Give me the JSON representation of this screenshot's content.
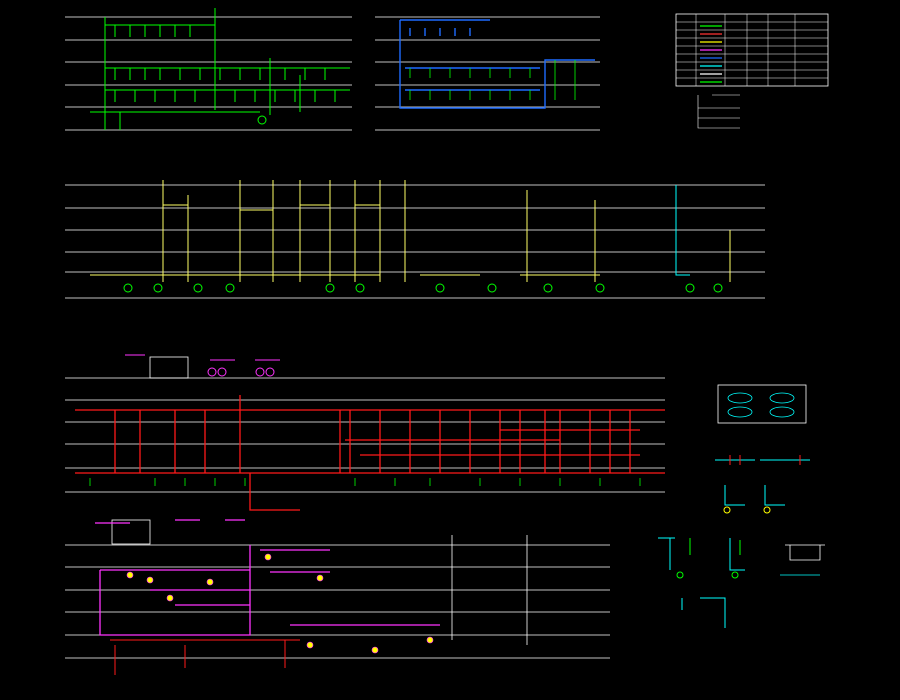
{
  "colors": {
    "background": "#000000",
    "floor_line": "#ffffff",
    "water_supply": "#00ff00",
    "drainage": "#ffff66",
    "blue_system": "#1e6bff",
    "fire_hydrant": "#ff1a1a",
    "sprinkler": "#ff33ff",
    "detail": "#00ffff",
    "text": "#00ff00",
    "accent_text": "#ffff00",
    "legend_grid": "#ffffff"
  },
  "drawing": {
    "diagrams": [
      {
        "id": "water-supply-system",
        "system": "water_supply",
        "caption": "",
        "floor_count": 5
      },
      {
        "id": "hot-water-system",
        "system": "blue_system",
        "caption": "",
        "floor_count": 5
      },
      {
        "id": "drainage-system",
        "system": "drainage",
        "caption": "",
        "floor_count": 6
      },
      {
        "id": "fire-hydrant-system",
        "system": "fire_hydrant",
        "caption": "",
        "floor_count": 6
      },
      {
        "id": "sprinkler-system",
        "system": "sprinkler",
        "caption": "",
        "floor_count": 6
      }
    ],
    "legend": {
      "title": "",
      "headers": [
        "",
        "",
        "",
        "",
        "",
        ""
      ],
      "row_count": 8,
      "line_swatches": [
        "#00ff00",
        "#ff3333",
        "#ffff00",
        "#ff33ff",
        "#1e6bff",
        "#00ffff",
        "#ffffff",
        "#00ff00"
      ]
    },
    "details": [
      {
        "id": "parking-detail",
        "caption": ""
      },
      {
        "id": "valve-detail-a",
        "caption": ""
      },
      {
        "id": "valve-detail-b",
        "caption": ""
      },
      {
        "id": "riser-detail",
        "caption": ""
      },
      {
        "id": "trench-detail",
        "caption": ""
      }
    ]
  }
}
